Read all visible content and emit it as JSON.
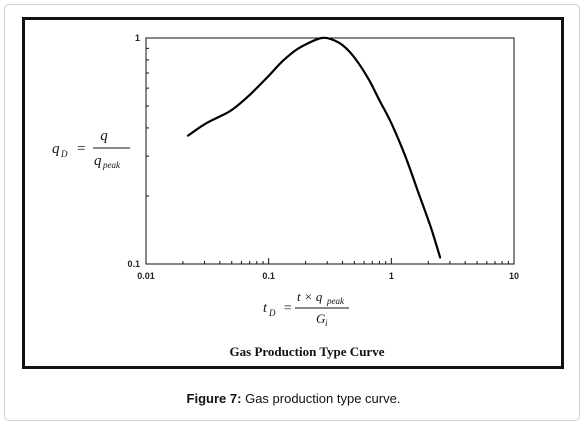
{
  "caption": {
    "label": "Figure 7:",
    "text": "Gas production type curve."
  },
  "chart_data": {
    "type": "line",
    "title": "Gas Production Type Curve",
    "xscale": "log",
    "yscale": "log",
    "xlim": [
      0.01,
      10
    ],
    "ylim": [
      0.1,
      1
    ],
    "grid": false,
    "x_ticks": [
      "0.01",
      "0.1",
      "1",
      "10"
    ],
    "y_ticks": [
      "1",
      "0.1"
    ],
    "ylabel": {
      "lhs": "q",
      "lhs_sub": "D",
      "numerator": "q",
      "denominator": "q",
      "denominator_sub": "peak"
    },
    "xlabel": {
      "lhs": "t",
      "lhs_sub": "D",
      "numerator": "t × q",
      "numerator_sub": "peak",
      "denominator": "G",
      "denominator_sub": "i"
    },
    "series": [
      {
        "x": [
          0.022,
          0.03,
          0.04,
          0.05,
          0.07,
          0.1,
          0.13,
          0.17,
          0.22,
          0.27,
          0.32,
          0.4,
          0.5,
          0.65,
          0.8,
          1.0,
          1.3,
          1.7,
          2.1,
          2.5
        ],
        "y": [
          0.37,
          0.415,
          0.45,
          0.48,
          0.56,
          0.68,
          0.79,
          0.89,
          0.96,
          1.0,
          0.99,
          0.93,
          0.82,
          0.66,
          0.53,
          0.42,
          0.3,
          0.2,
          0.145,
          0.107
        ]
      }
    ]
  }
}
